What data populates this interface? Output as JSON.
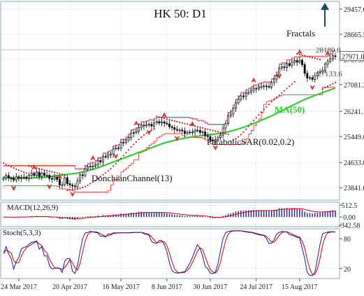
{
  "chart_data": {
    "type": "candlestick",
    "title": "HK 50: D1",
    "colors": {
      "bull": "#ffffff",
      "bear": "#000000",
      "ma50": "#33cc33",
      "donchian": "#ff3333",
      "sar": "#cc0000",
      "fractal": "#ff3333",
      "macd_hist": "#1a1a99",
      "macd_signal": "#cc0000",
      "stoch_k": "#1a1a99",
      "stoch_d": "#cc0000",
      "grid": "#7a9ca8",
      "arrow": "#1a4a5a"
    },
    "price_axis": {
      "ticks": [
        "29457.6",
        "28665.5",
        "27873.4",
        "27081.3",
        "26241.1",
        "25449.0",
        "24633.0",
        "23841.0"
      ],
      "ylim": [
        23450,
        29700
      ]
    },
    "x_ticks": [
      "24 Mar 2017",
      "20 Apr 2017",
      "16 May 2017",
      "8 Jun 2017",
      "30 Jun 2017",
      "24 Jul 2017",
      "15 Aug 2017"
    ],
    "current_price_label": "27971.0",
    "level_labels": [
      {
        "text": "28180.0",
        "value": 28180
      },
      {
        "text": "27133.6",
        "value": 27133.6
      }
    ],
    "annotations": {
      "fractals": "Fractals",
      "ma": "MA(50)",
      "sar": "ParabolicSAR(0.02,0.2)",
      "donchian": "DonchianChannel(13)"
    },
    "close": [
      24143,
      24223,
      24142,
      24137,
      24080,
      24186,
      24140,
      24162,
      24175,
      24134,
      24234,
      24294,
      24222,
      24330,
      24193,
      24301,
      24226,
      24231,
      24130,
      24109,
      24173,
      24099,
      23925,
      23933,
      24156,
      23970,
      23927,
      23893,
      23870,
      24053,
      24248,
      24220,
      24432,
      24495,
      24517,
      24520,
      24561,
      24694,
      24654,
      24825,
      24803,
      24871,
      24903,
      25062,
      25085,
      25088,
      25269,
      25263,
      25343,
      25416,
      25549,
      25574,
      25612,
      25737,
      25808,
      25783,
      25817,
      25837,
      25778,
      25876,
      25921,
      25877,
      25913,
      25868,
      25848,
      25761,
      25732,
      25674,
      25650,
      25653,
      25627,
      25544,
      25588,
      25584,
      25591,
      25649,
      25642,
      25579,
      25596,
      25473,
      25449,
      25345,
      25317,
      25356,
      25416,
      25494,
      25716,
      25859,
      26105,
      26158,
      26342,
      26509,
      26621,
      26729,
      26708,
      26810,
      26844,
      26905,
      26965,
      26949,
      27007,
      27018,
      27040,
      27023,
      27007,
      27148,
      27257,
      27354,
      27604,
      27641,
      27621,
      27744,
      27682,
      27785,
      27839,
      27788,
      27850,
      27710,
      27437,
      27286,
      27302,
      27248,
      27365,
      27453,
      27491,
      27536,
      27730,
      27812,
      27893,
      27990,
      27971
    ],
    "ma50": [
      24170,
      24165,
      24160,
      24155,
      24150,
      24145,
      24140,
      24140,
      24140,
      24140,
      24140,
      24145,
      24150,
      24155,
      24160,
      24165,
      24170,
      24180,
      24190,
      24200,
      24210,
      24220,
      24230,
      24240,
      24250,
      24260,
      24270,
      24280,
      24290,
      24300,
      24320,
      24340,
      24360,
      24380,
      24400,
      24420,
      24440,
      24470,
      24500,
      24530,
      24560,
      24590,
      24620,
      24650,
      24680,
      24710,
      24740,
      24770,
      24800,
      24830,
      24860,
      24890,
      24920,
      24950,
      24980,
      25010,
      25040,
      25070,
      25100,
      25130,
      25160,
      25190,
      25220,
      25250,
      25270,
      25290,
      25310,
      25330,
      25350,
      25370,
      25385,
      25400,
      25415,
      25430,
      25440,
      25450,
      25460,
      25470,
      25480,
      25490,
      25500,
      25510,
      25520,
      25530,
      25540,
      25550,
      25565,
      25580,
      25600,
      25620,
      25640,
      25665,
      25690,
      25715,
      25740,
      25770,
      25800,
      25830,
      25860,
      25890,
      25925,
      25960,
      25995,
      26030,
      26065,
      26100,
      26140,
      26180,
      26220,
      26260,
      26300,
      26340,
      26380,
      26420,
      26460,
      26500,
      26540,
      26580,
      26620,
      26650,
      26680,
      26710,
      26740,
      26770,
      26800,
      26830,
      26860,
      26890,
      26920,
      26950,
      26975
    ],
    "donchian_upper": [
      24540,
      24540,
      24540,
      24540,
      24540,
      24540,
      24540,
      24540,
      24540,
      24540,
      24540,
      24540,
      24540,
      24540,
      24540,
      24540,
      24540,
      24540,
      24540,
      24540,
      24540,
      24540,
      24540,
      24540,
      24540,
      24540,
      24540,
      24540,
      24440,
      24440,
      24440,
      24440,
      24540,
      24600,
      24640,
      24640,
      24700,
      24790,
      24790,
      24930,
      24930,
      24990,
      25020,
      25160,
      25180,
      25200,
      25370,
      25370,
      25450,
      25530,
      25660,
      25690,
      25730,
      25850,
      25920,
      25920,
      25950,
      25980,
      25980,
      26020,
      26060,
      26060,
      26060,
      26060,
      26060,
      26060,
      26060,
      26060,
      26060,
      26060,
      26060,
      26060,
      26060,
      26040,
      26010,
      26010,
      25960,
      25960,
      25940,
      25880,
      25840,
      25840,
      25840,
      25840,
      25840,
      25840,
      25840,
      25960,
      26210,
      26270,
      26450,
      26620,
      26730,
      26840,
      26840,
      26930,
      26970,
      27020,
      27080,
      27080,
      27130,
      27150,
      27170,
      27170,
      27170,
      27270,
      27380,
      27480,
      27730,
      27770,
      27770,
      27870,
      27870,
      27920,
      27960,
      27960,
      27980,
      27980,
      27980,
      27980,
      27980,
      27980,
      27980,
      27980,
      27980,
      27980,
      27980,
      28000,
      28060,
      28150,
      28150
    ],
    "donchian_lower": [
      23900,
      23900,
      23900,
      23900,
      23900,
      23900,
      23900,
      23900,
      23900,
      23900,
      23900,
      23900,
      23900,
      23900,
      23900,
      23900,
      23900,
      23900,
      23900,
      23900,
      23900,
      23880,
      23800,
      23800,
      23800,
      23780,
      23760,
      23740,
      23700,
      23700,
      23700,
      23700,
      23700,
      23700,
      23700,
      23700,
      23700,
      23700,
      23700,
      23700,
      23700,
      23760,
      23930,
      24100,
      24100,
      24200,
      24340,
      24400,
      24460,
      24540,
      24600,
      24720,
      24720,
      24930,
      24970,
      25000,
      25100,
      25180,
      25230,
      25300,
      25410,
      25450,
      25500,
      25540,
      25540,
      25540,
      25540,
      25540,
      25540,
      25540,
      25480,
      25420,
      25420,
      25420,
      25420,
      25420,
      25420,
      25420,
      25390,
      25340,
      25320,
      25220,
      25200,
      25200,
      25200,
      25200,
      25200,
      25200,
      25200,
      25200,
      25200,
      25200,
      25200,
      25240,
      25240,
      25380,
      25530,
      25640,
      25790,
      25900,
      26000,
      26200,
      26460,
      26550,
      26580,
      26600,
      26650,
      26700,
      26730,
      26760,
      26760,
      26760,
      26760,
      26760,
      26760,
      26760,
      26760,
      26760,
      26760,
      26760,
      26760,
      26760,
      26760,
      26760,
      26760,
      27000,
      27000,
      27000,
      27000,
      27000,
      27000
    ],
    "sar": [
      24620,
      24580,
      24540,
      24500,
      24460,
      24420,
      24390,
      24360,
      24330,
      24300,
      24520,
      24500,
      24480,
      24460,
      24440,
      24420,
      24400,
      24380,
      24360,
      24340,
      24320,
      24300,
      24280,
      24260,
      24240,
      23760,
      23770,
      23780,
      23790,
      23800,
      23820,
      23850,
      23880,
      23920,
      23970,
      24020,
      24070,
      24130,
      24190,
      24250,
      24310,
      24370,
      24440,
      24520,
      24600,
      24680,
      24760,
      24850,
      24940,
      25030,
      25120,
      25200,
      25280,
      25360,
      25430,
      25500,
      25560,
      25610,
      25650,
      25690,
      26080,
      26060,
      26040,
      26020,
      26000,
      25980,
      25960,
      25940,
      25920,
      25900,
      25880,
      25860,
      25840,
      25820,
      25800,
      25780,
      25760,
      25740,
      25720,
      25700,
      25680,
      25660,
      25640,
      25620,
      25600,
      25580,
      25560,
      25540,
      25520,
      25300,
      25330,
      25380,
      25440,
      25510,
      25590,
      25680,
      25770,
      25860,
      25950,
      26040,
      26130,
      26220,
      26300,
      26380,
      26460,
      26540,
      26610,
      26680,
      26750,
      26820,
      26890,
      26960,
      27030,
      27100,
      27170,
      28050,
      28030,
      28010,
      27990,
      27970,
      27950,
      27930,
      27910,
      27890,
      27870,
      26950,
      26990,
      27030,
      27070,
      27110,
      27150
    ],
    "fractals_up": [
      12,
      22,
      35,
      52,
      63,
      74,
      98,
      116,
      127
    ],
    "fractals_down": [
      4,
      18,
      27,
      44,
      57,
      68,
      83,
      108,
      121
    ],
    "macd": {
      "label": "MACD(12,26,9)",
      "ticks": [
        "512.5",
        "0.00",
        "-342.58"
      ],
      "ylim": [
        -420,
        640
      ]
    },
    "stoch": {
      "label": "Stoch(5,3,3)",
      "ticks": [
        "80",
        "20"
      ],
      "ylim": [
        0,
        100
      ]
    }
  }
}
